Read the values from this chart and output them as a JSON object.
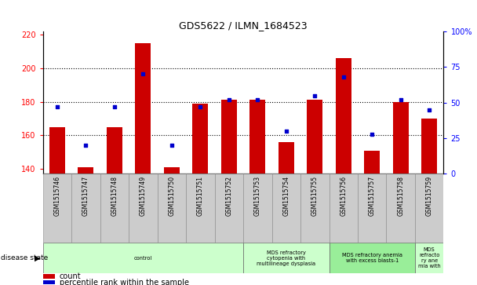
{
  "title": "GDS5622 / ILMN_1684523",
  "samples": [
    "GSM1515746",
    "GSM1515747",
    "GSM1515748",
    "GSM1515749",
    "GSM1515750",
    "GSM1515751",
    "GSM1515752",
    "GSM1515753",
    "GSM1515754",
    "GSM1515755",
    "GSM1515756",
    "GSM1515757",
    "GSM1515758",
    "GSM1515759"
  ],
  "counts": [
    165,
    141,
    165,
    215,
    141,
    179,
    181,
    181,
    156,
    181,
    206,
    151,
    180,
    170
  ],
  "percentile_ranks": [
    47,
    20,
    47,
    70,
    20,
    47,
    52,
    52,
    30,
    55,
    68,
    28,
    52,
    45
  ],
  "ylim_left": [
    137,
    222
  ],
  "ylim_right": [
    0,
    100
  ],
  "yticks_left": [
    140,
    160,
    180,
    200,
    220
  ],
  "yticks_right": [
    0,
    25,
    50,
    75,
    100
  ],
  "bar_color": "#cc0000",
  "dot_color": "#0000cc",
  "disease_groups": [
    {
      "label": "control",
      "start": 0,
      "end": 7,
      "color": "#ccffcc"
    },
    {
      "label": "MDS refractory\ncytopenia with\nmultilineage dysplasia",
      "start": 7,
      "end": 10,
      "color": "#ccffcc"
    },
    {
      "label": "MDS refractory anemia\nwith excess blasts-1",
      "start": 10,
      "end": 13,
      "color": "#99ee99"
    },
    {
      "label": "MDS\nrefracto\nry ane\nmia with",
      "start": 13,
      "end": 14,
      "color": "#ccffcc"
    }
  ],
  "disease_label": "disease state",
  "legend_count": "count",
  "legend_pct": "percentile rank within the sample",
  "bg_color": "#ffffff",
  "tick_label_bg": "#cccccc"
}
